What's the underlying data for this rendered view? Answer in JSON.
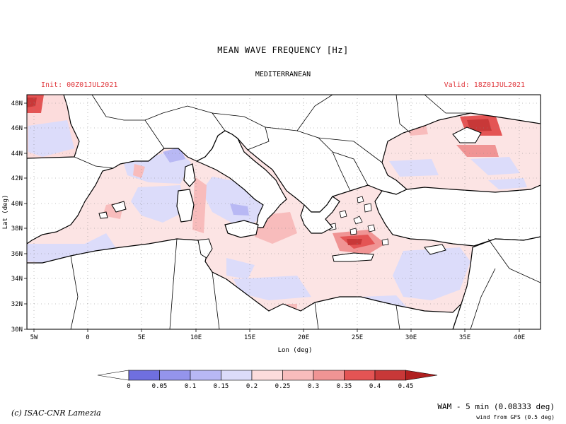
{
  "header": {
    "title": "MEAN WAVE FREQUENCY [Hz]",
    "region": "MEDITERRANEAN",
    "init_label": "Init: 00Z01JUL2021",
    "valid_label": "Valid: 18Z01JUL2021"
  },
  "map": {
    "xaxis_title": "Lon (deg)",
    "yaxis_title": "Lat (deg)",
    "lon_ticks": [
      "5W",
      "0",
      "5E",
      "10E",
      "15E",
      "20E",
      "25E",
      "30E",
      "35E",
      "40E"
    ],
    "lat_ticks": [
      "48N",
      "46N",
      "44N",
      "42N",
      "40N",
      "38N",
      "36N",
      "34N",
      "32N",
      "30N"
    ],
    "lon_range": [
      -5.5,
      42
    ],
    "lat_range": [
      30,
      48.8
    ],
    "grid": "dotted",
    "colors": {
      "land": "#ffffff",
      "coast": "#000000"
    }
  },
  "legend": {
    "labels": [
      "0",
      "0.05",
      "0.1",
      "0.15",
      "0.2",
      "0.25",
      "0.3",
      "0.35",
      "0.4",
      "0.45"
    ],
    "colors": [
      "#ffffff",
      "#6f6fe0",
      "#9494ec",
      "#b8b8f4",
      "#dcdcfa",
      "#fcdcdc",
      "#f8bcbc",
      "#f09494",
      "#e45454",
      "#c83838",
      "#b02020"
    ]
  },
  "footer": {
    "credit": "(c) ISAC-CNR Lamezia",
    "model": "WAM - 5 min (0.08333 deg)",
    "wind": "wind from GFS (0.5 deg)"
  }
}
